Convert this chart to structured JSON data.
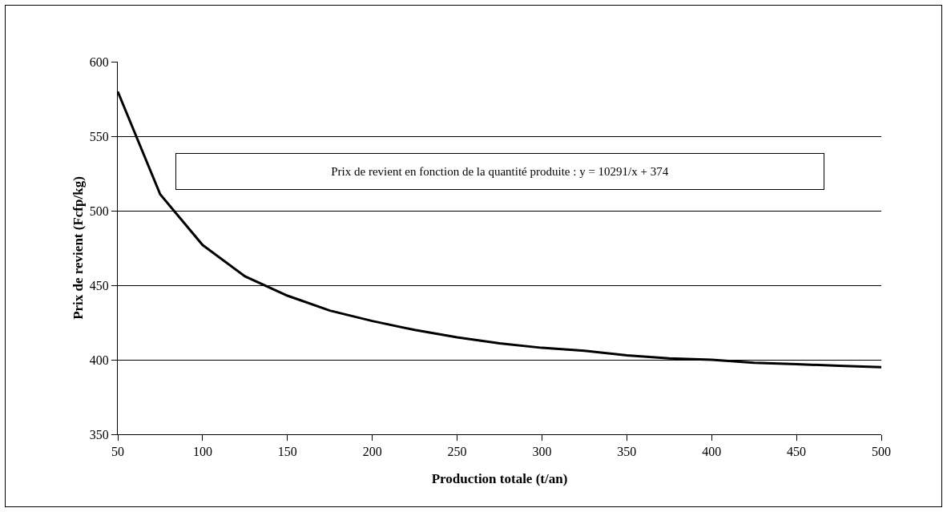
{
  "chart_data": {
    "type": "line",
    "xlabel": "Production totale (t/an)",
    "ylabel": "Prix de revient (Fcfp/kg)",
    "annotations": [
      "Prix de revient en fonction de la quantité produite : y = 10291/x + 374"
    ],
    "x": [
      50,
      75,
      100,
      125,
      150,
      175,
      200,
      225,
      250,
      275,
      300,
      325,
      350,
      375,
      400,
      425,
      450,
      475,
      500
    ],
    "series": [
      {
        "color": "#000000",
        "values": [
          580,
          511,
          477,
          456,
          443,
          433,
          426,
          420,
          415,
          411,
          408,
          406,
          403,
          401,
          400,
          398,
          397,
          396,
          395
        ]
      }
    ],
    "xlim": [
      50,
      500
    ],
    "xticks": [
      50,
      100,
      150,
      200,
      250,
      300,
      350,
      400,
      450,
      500
    ],
    "ylim": [
      350,
      600
    ],
    "yticks": [
      350,
      400,
      450,
      500,
      550,
      600
    ],
    "grid": "y",
    "marker": "none",
    "line_style": "solid"
  }
}
